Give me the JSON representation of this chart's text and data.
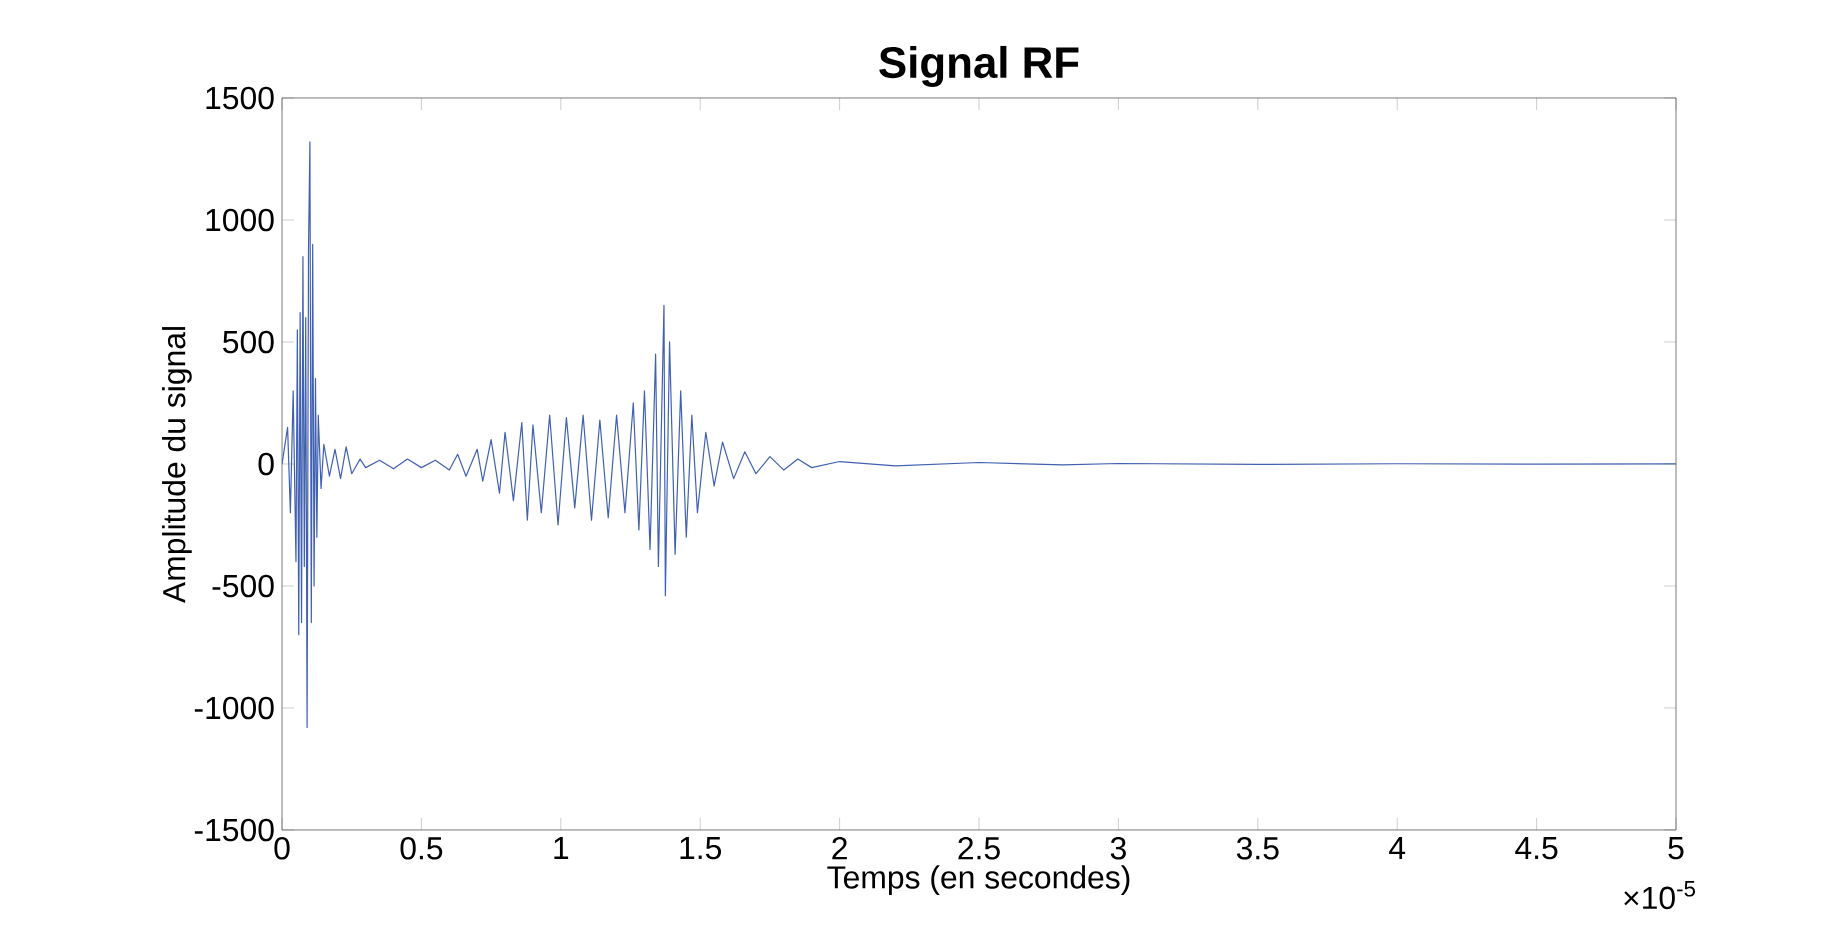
{
  "chart_data": {
    "type": "line",
    "title": "Signal RF",
    "xlabel": "Temps (en secondes)",
    "ylabel": "Amplitude du signal",
    "annotations": [
      "×10$^{-5}$"
    ],
    "x": [
      0,
      0.02,
      0.03,
      0.04,
      0.05,
      0.055,
      0.06,
      0.065,
      0.07,
      0.075,
      0.08,
      0.085,
      0.09,
      0.095,
      0.1,
      0.105,
      0.11,
      0.115,
      0.12,
      0.125,
      0.13,
      0.14,
      0.15,
      0.17,
      0.19,
      0.21,
      0.23,
      0.25,
      0.28,
      0.3,
      0.35,
      0.4,
      0.45,
      0.5,
      0.55,
      0.6,
      0.63,
      0.66,
      0.7,
      0.72,
      0.75,
      0.78,
      0.8,
      0.83,
      0.86,
      0.88,
      0.9,
      0.93,
      0.96,
      0.99,
      1.02,
      1.05,
      1.08,
      1.11,
      1.14,
      1.17,
      1.2,
      1.23,
      1.26,
      1.28,
      1.3,
      1.32,
      1.34,
      1.35,
      1.37,
      1.375,
      1.39,
      1.41,
      1.43,
      1.45,
      1.47,
      1.49,
      1.52,
      1.55,
      1.58,
      1.62,
      1.66,
      1.7,
      1.75,
      1.8,
      1.85,
      1.9,
      2.0,
      2.2,
      2.5,
      2.8,
      3,
      3.5,
      4,
      4.5,
      5
    ],
    "values": [
      0,
      150,
      -200,
      300,
      -400,
      550,
      -700,
      620,
      -650,
      850,
      -420,
      600,
      -1080,
      880,
      1320,
      -650,
      900,
      -500,
      350,
      -300,
      200,
      -100,
      80,
      -50,
      60,
      -60,
      70,
      -40,
      20,
      -15,
      15,
      -20,
      20,
      -15,
      15,
      -25,
      40,
      -50,
      60,
      -70,
      100,
      -120,
      130,
      -150,
      170,
      -230,
      160,
      -200,
      200,
      -250,
      190,
      -180,
      200,
      -230,
      180,
      -220,
      200,
      -200,
      250,
      -270,
      300,
      -350,
      450,
      -420,
      650,
      -540,
      500,
      -370,
      300,
      -300,
      200,
      -200,
      130,
      -90,
      90,
      -60,
      50,
      -40,
      30,
      -25,
      20,
      -15,
      10,
      -8,
      6,
      -4,
      2,
      -2,
      1,
      -1,
      0
    ],
    "color": "#4060b0",
    "xlim": [
      0,
      5
    ],
    "ylim": [
      -1500,
      1500
    ],
    "xticks": [
      0,
      0.5,
      1,
      1.5,
      2,
      2.5,
      3,
      3.5,
      4,
      4.5,
      5
    ],
    "yticks": [
      -1500,
      -1000,
      -500,
      0,
      500,
      1000,
      1500
    ]
  }
}
